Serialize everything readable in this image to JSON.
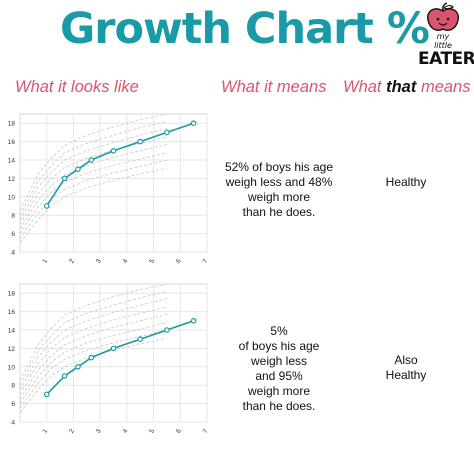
{
  "title": "Growth Chart %",
  "logo": {
    "line1": "my",
    "line2": "little",
    "line3": "EATER"
  },
  "columns": {
    "looks": "What it looks like",
    "means": "What it means",
    "that_prefix": "What ",
    "that_bold": "that",
    "that_suffix": " means"
  },
  "rows": [
    {
      "description": [
        "52% of boys his age",
        "weigh less and 48%",
        "weigh more",
        "than he does."
      ],
      "verdict": [
        "Healthy"
      ]
    },
    {
      "description": [
        "5%",
        "of boys his age",
        "weigh less",
        "and 95%",
        "weigh more",
        "than he does."
      ],
      "verdict": [
        "Also",
        "Healthy"
      ]
    }
  ],
  "colors": {
    "title": "#1a9aa6",
    "heading": "#d9546e",
    "series": "#1a9aa6",
    "percentile_curves": "#c8c8c8",
    "grid": "#e6e6e6"
  },
  "chart_data": [
    {
      "type": "line",
      "x_ticks": [
        "1",
        "2",
        "3",
        "4",
        "5",
        "6",
        "7"
      ],
      "y_ticks": [
        "4",
        "6",
        "8",
        "10",
        "12",
        "14",
        "16",
        "18"
      ],
      "xlim": [
        0,
        7
      ],
      "ylim": [
        4,
        19
      ],
      "grid": true,
      "series": [
        {
          "x": [
            1,
            1.67,
            2.17,
            2.67,
            3.5,
            4.5,
            5.5,
            6.5
          ],
          "y": [
            9,
            12,
            13,
            14,
            15,
            16,
            17,
            18
          ]
        }
      ],
      "percentile_curves": [
        [
          5,
          7.5,
          9,
          10,
          11,
          11.8,
          12.5,
          13.1
        ],
        [
          5.5,
          8.2,
          9.8,
          10.8,
          11.8,
          12.6,
          13.3,
          14
        ],
        [
          6,
          8.9,
          10.5,
          11.6,
          12.6,
          13.4,
          14.1,
          14.8
        ],
        [
          6.5,
          9.6,
          11.2,
          12.4,
          13.4,
          14.3,
          15,
          15.7
        ],
        [
          7,
          10.3,
          12,
          13.2,
          14.2,
          15.1,
          15.8,
          16.5
        ],
        [
          7.5,
          11,
          12.7,
          14,
          15,
          15.9,
          16.7,
          17.4
        ],
        [
          8,
          11.7,
          13.4,
          14.8,
          15.8,
          16.7,
          17.5,
          18.2
        ],
        [
          8.5,
          12.4,
          14.2,
          15.6,
          16.7,
          17.6,
          18.4,
          19
        ]
      ]
    },
    {
      "type": "line",
      "x_ticks": [
        "1",
        "2",
        "3",
        "4",
        "5",
        "6",
        "7"
      ],
      "y_ticks": [
        "4",
        "6",
        "8",
        "10",
        "12",
        "14",
        "16",
        "18"
      ],
      "xlim": [
        0,
        7
      ],
      "ylim": [
        4,
        19
      ],
      "grid": true,
      "series": [
        {
          "x": [
            1,
            1.67,
            2.17,
            2.67,
            3.5,
            4.5,
            5.5,
            6.5
          ],
          "y": [
            7,
            9,
            10,
            11,
            12,
            13,
            14,
            15
          ]
        }
      ],
      "percentile_curves": [
        [
          5,
          7.5,
          9,
          10,
          11,
          11.8,
          12.5,
          13.1
        ],
        [
          5.5,
          8.2,
          9.8,
          10.8,
          11.8,
          12.6,
          13.3,
          14
        ],
        [
          6,
          8.9,
          10.5,
          11.6,
          12.6,
          13.4,
          14.1,
          14.8
        ],
        [
          6.5,
          9.6,
          11.2,
          12.4,
          13.4,
          14.3,
          15,
          15.7
        ],
        [
          7,
          10.3,
          12,
          13.2,
          14.2,
          15.1,
          15.8,
          16.5
        ],
        [
          7.5,
          11,
          12.7,
          14,
          15,
          15.9,
          16.7,
          17.4
        ],
        [
          8,
          11.7,
          13.4,
          14.8,
          15.8,
          16.7,
          17.5,
          18.2
        ],
        [
          8.5,
          12.4,
          14.2,
          15.6,
          16.7,
          17.6,
          18.4,
          19
        ]
      ]
    }
  ]
}
